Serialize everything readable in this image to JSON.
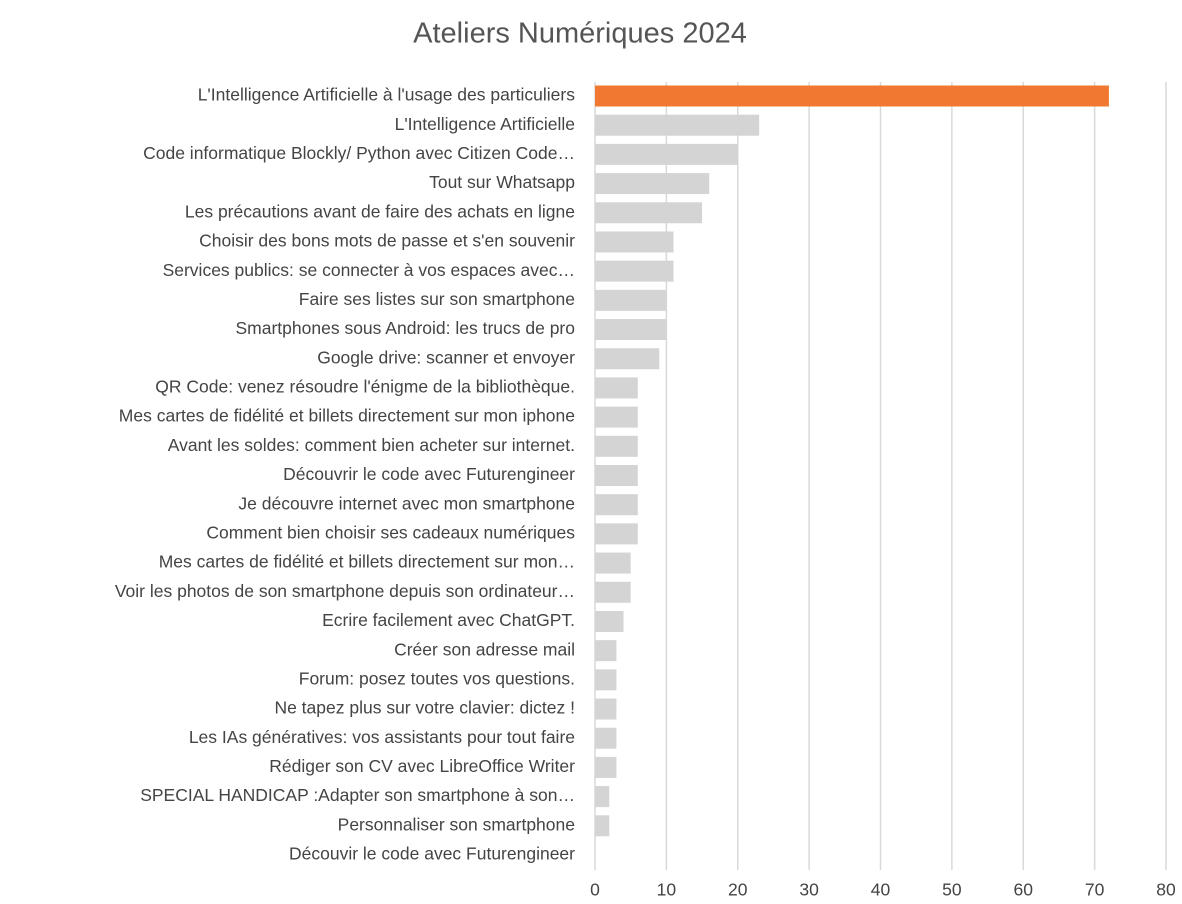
{
  "chart_data": {
    "type": "hbar",
    "title": "Ateliers Numériques 2024",
    "categories": [
      "L'Intelligence Artificielle à l'usage des particuliers",
      "L'Intelligence Artificielle",
      "Code informatique Blockly/ Python avec Citizen Code…",
      "Tout sur Whatsapp",
      "Les précautions avant de faire des achats en ligne",
      "Choisir des bons mots de passe et s'en souvenir",
      "Services publics: se connecter à vos espaces avec…",
      "Faire ses listes sur son smartphone",
      "Smartphones sous Android: les trucs de pro",
      "Google drive: scanner et envoyer",
      "QR Code: venez résoudre l'énigme de la bibliothèque.",
      "Mes cartes de fidélité et billets directement sur mon iphone",
      "Avant les soldes: comment bien acheter sur internet.",
      "Découvrir le code avec Futurengineer",
      "Je découvre internet avec mon smartphone",
      "Comment bien choisir ses cadeaux numériques",
      "Mes cartes de fidélité et billets directement sur mon…",
      "Voir les photos de son smartphone depuis son ordinateur…",
      "Ecrire facilement avec ChatGPT.",
      "Créer son adresse mail",
      "Forum: posez toutes vos questions.",
      "Ne tapez plus sur votre clavier: dictez !",
      "Les IAs génératives: vos assistants pour tout faire",
      "Rédiger son CV avec LibreOffice Writer",
      "SPECIAL HANDICAP :Adapter son smartphone à son…",
      "Personnaliser son smartphone",
      "Découvir le code avec Futurengineer"
    ],
    "values": [
      72,
      23,
      20,
      16,
      15,
      11,
      11,
      10,
      10,
      9,
      6,
      6,
      6,
      6,
      6,
      6,
      5,
      5,
      4,
      3,
      3,
      3,
      3,
      3,
      2,
      2,
      0
    ],
    "colors": [
      "#f07830",
      "#d4d4d4",
      "#d4d4d4",
      "#d4d4d4",
      "#d4d4d4",
      "#d4d4d4",
      "#d4d4d4",
      "#d4d4d4",
      "#d4d4d4",
      "#d4d4d4",
      "#d4d4d4",
      "#d4d4d4",
      "#d4d4d4",
      "#d4d4d4",
      "#d4d4d4",
      "#d4d4d4",
      "#d4d4d4",
      "#d4d4d4",
      "#d4d4d4",
      "#d4d4d4",
      "#d4d4d4",
      "#d4d4d4",
      "#d4d4d4",
      "#d4d4d4",
      "#d4d4d4",
      "#d4d4d4",
      "#d4d4d4"
    ],
    "xlim": [
      0,
      80
    ],
    "xticks": [
      0,
      10,
      20,
      30,
      40,
      50,
      60,
      70,
      80
    ],
    "grid": true
  }
}
